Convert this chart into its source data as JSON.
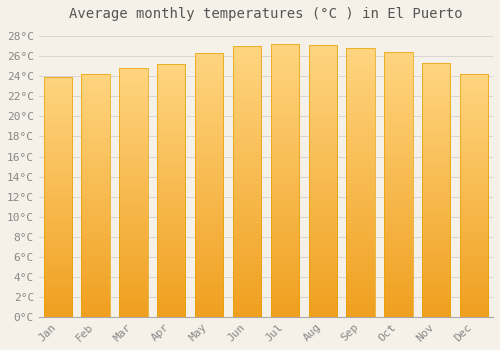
{
  "title": "Average monthly temperatures (°C ) in El Puerto",
  "months": [
    "Jan",
    "Feb",
    "Mar",
    "Apr",
    "May",
    "Jun",
    "Jul",
    "Aug",
    "Sep",
    "Oct",
    "Nov",
    "Dec"
  ],
  "values": [
    23.9,
    24.2,
    24.8,
    25.2,
    26.3,
    27.0,
    27.2,
    27.1,
    26.8,
    26.4,
    25.3,
    24.2
  ],
  "bar_color_top": "#FFD580",
  "bar_color_bottom": "#F0A020",
  "bar_edge_color": "#E8A000",
  "background_color": "#F5F0E8",
  "plot_bg_color": "#F5F0E8",
  "grid_color": "#CCCCCC",
  "ytick_labels": [
    "0°C",
    "2°C",
    "4°C",
    "6°C",
    "8°C",
    "10°C",
    "12°C",
    "14°C",
    "16°C",
    "18°C",
    "20°C",
    "22°C",
    "24°C",
    "26°C",
    "28°C"
  ],
  "ytick_values": [
    0,
    2,
    4,
    6,
    8,
    10,
    12,
    14,
    16,
    18,
    20,
    22,
    24,
    26,
    28
  ],
  "ylim": [
    0,
    29
  ],
  "title_fontsize": 10,
  "tick_fontsize": 8,
  "tick_color": "#888888",
  "title_color": "#555555",
  "font_family": "monospace",
  "bar_width": 0.75,
  "figsize": [
    5.0,
    3.5
  ],
  "dpi": 100
}
